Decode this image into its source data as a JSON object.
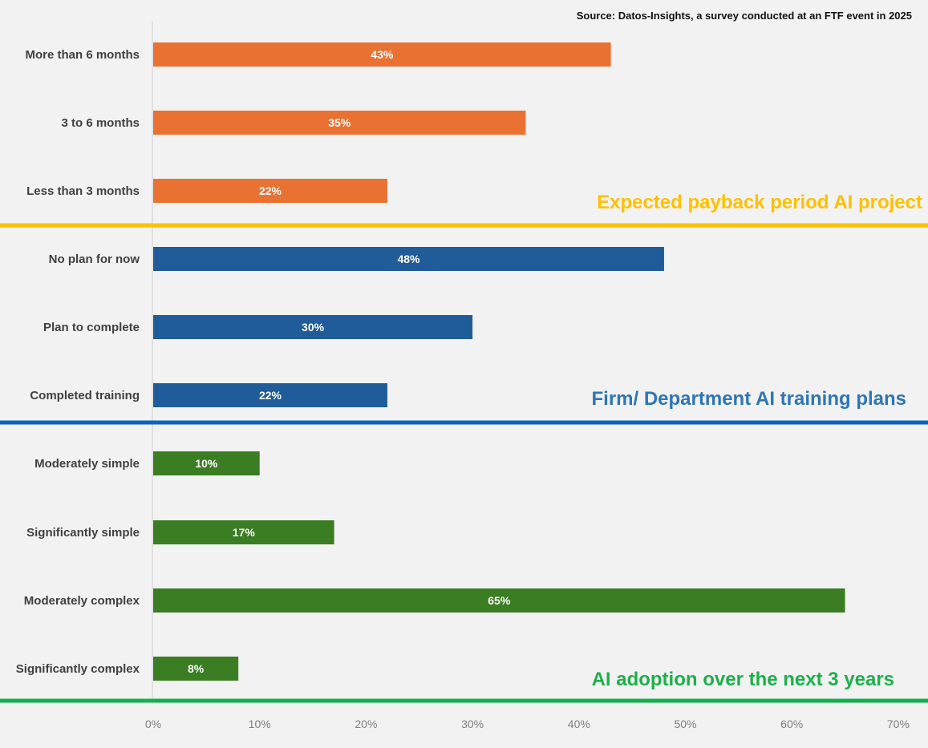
{
  "source_note": "Source: Datos-Insights, a survey conducted at an FTF event in 2025",
  "chart_data": {
    "type": "bar",
    "orientation": "horizontal",
    "xlim": [
      0,
      70
    ],
    "x_ticks": [
      "0%",
      "10%",
      "20%",
      "30%",
      "40%",
      "50%",
      "60%",
      "70%"
    ],
    "grid": false,
    "sections": [
      {
        "title": "Expected payback period AI project",
        "color": "#E97132",
        "title_color": "#FFC000",
        "divider_color": "#FFC000",
        "categories": [
          "More than 6 months",
          "3 to 6 months",
          "Less than 3 months"
        ],
        "values": [
          43,
          35,
          22
        ],
        "labels": [
          "43%",
          "35%",
          "22%"
        ]
      },
      {
        "title": "Firm/ Department AI training plans",
        "color": "#1F5C99",
        "title_color": "#2E75B6",
        "divider_color": "#0F62C0",
        "categories": [
          "No plan for now",
          "Plan to complete",
          "Completed training"
        ],
        "values": [
          48,
          30,
          22
        ],
        "labels": [
          "48%",
          "30%",
          "22%"
        ]
      },
      {
        "title": "AI adoption over the next 3 years",
        "color": "#3A7D22",
        "title_color": "#1DB04A",
        "divider_color": "#14B04E",
        "categories": [
          "Moderately simple",
          "Significantly simple",
          "Moderately complex",
          "Significantly complex"
        ],
        "values": [
          10,
          17,
          65,
          8
        ],
        "labels": [
          "10%",
          "17%",
          "65%",
          "8%"
        ]
      }
    ]
  }
}
